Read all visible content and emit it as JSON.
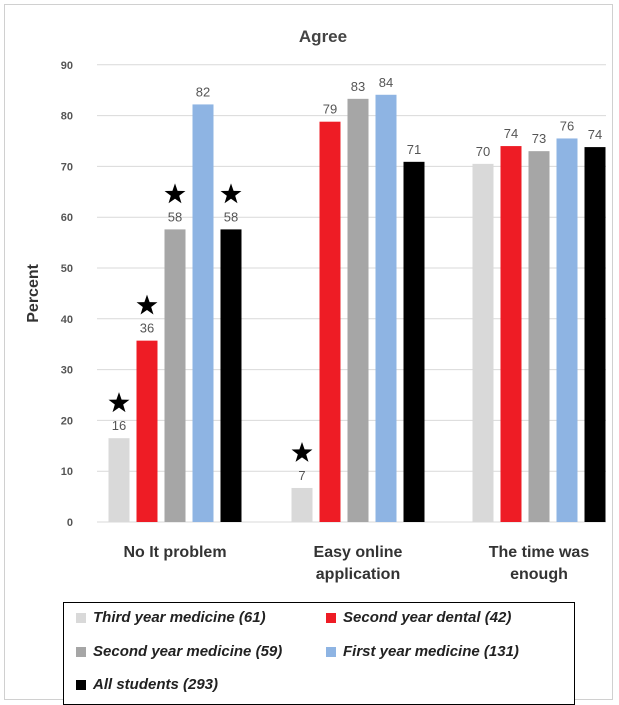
{
  "chart_data": {
    "type": "bar",
    "title": "Agree",
    "ylabel": "Percent",
    "xlabel": "",
    "ylim": [
      0,
      90
    ],
    "yticks": [
      0,
      10,
      20,
      30,
      40,
      50,
      60,
      70,
      80,
      90
    ],
    "grid": true,
    "legend_placement": "bottom",
    "categories": [
      [
        "No It problem"
      ],
      [
        "Easy online",
        "application"
      ],
      [
        "The time was",
        "enough"
      ]
    ],
    "series": [
      {
        "name": "Third year medicine (61)",
        "color": "#d9d9d9",
        "values": [
          16,
          7,
          70
        ]
      },
      {
        "name": "Second year dental (42)",
        "color": "#ee1c25",
        "values": [
          36,
          79,
          74
        ]
      },
      {
        "name": "Second year medicine (59)",
        "color": "#a6a6a6",
        "values": [
          58,
          83,
          73
        ]
      },
      {
        "name": "First year medicine (131)",
        "color": "#8eb4e3",
        "values": [
          82,
          84,
          76
        ]
      },
      {
        "name": "All students (293)",
        "color": "#000000",
        "values": [
          58,
          71,
          74
        ]
      }
    ],
    "plot_values": [
      [
        16.5,
        6.7,
        70.5
      ],
      [
        35.7,
        78.8,
        74.0
      ],
      [
        57.6,
        83.3,
        73.0
      ],
      [
        82.2,
        84.1,
        75.5
      ],
      [
        57.6,
        70.9,
        73.8
      ]
    ],
    "annotations": [
      {
        "marker": "star-icon",
        "series": 0,
        "category": 0
      },
      {
        "marker": "star-icon",
        "series": 1,
        "category": 0
      },
      {
        "marker": "star-icon",
        "series": 2,
        "category": 0
      },
      {
        "marker": "star-icon",
        "series": 4,
        "category": 0
      },
      {
        "marker": "star-icon",
        "series": 0,
        "category": 1
      }
    ]
  }
}
